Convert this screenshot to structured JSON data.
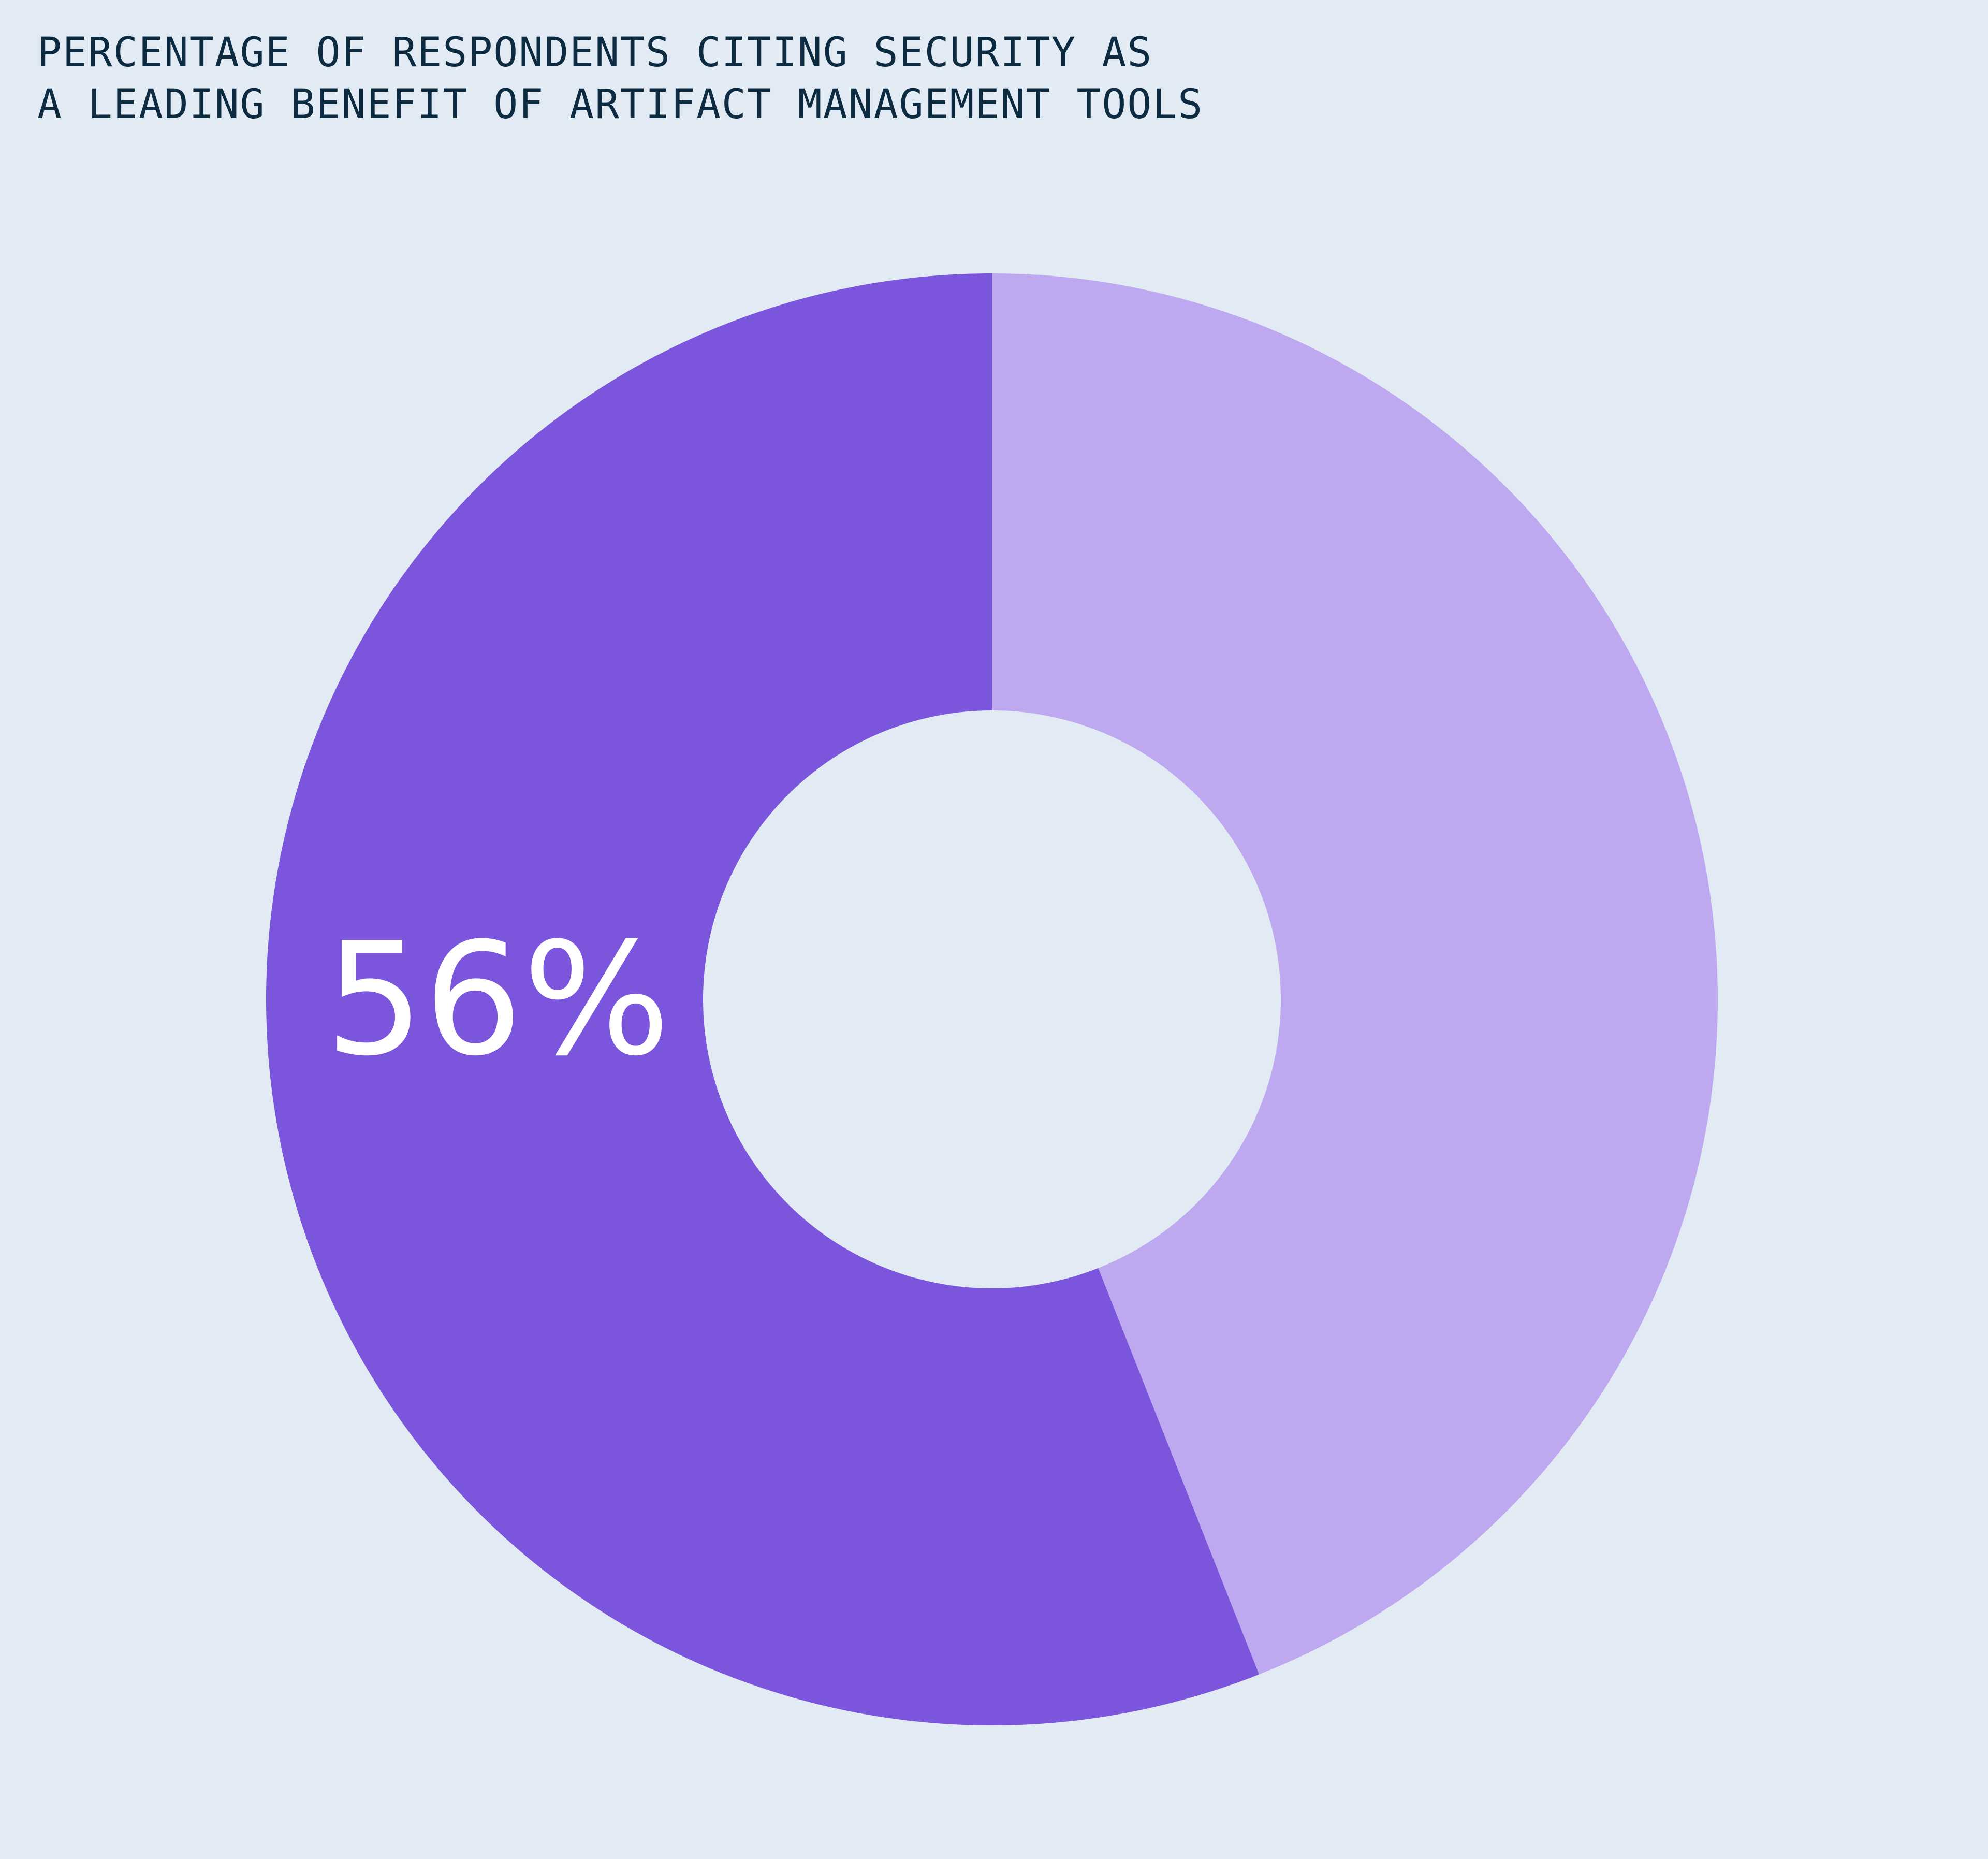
{
  "colors": {
    "background": "#e2eaf3",
    "title": "#0c2b40",
    "primary_slice": "#7b55db",
    "secondary_slice": "#bea8ef",
    "label": "#ffffff"
  },
  "chart_data": {
    "type": "pie",
    "variant": "donut",
    "title_lines": [
      "PERCENTAGE OF RESPONDENTS CITING SECURITY AS",
      "A LEADING BENEFIT OF ARTIFACT MANAGEMENT TOOLS"
    ],
    "slices": [
      {
        "value": 56,
        "label": "56%",
        "color": "#7b55db"
      },
      {
        "value": 44,
        "label": "",
        "color": "#bea8ef"
      }
    ],
    "legend": "none"
  }
}
